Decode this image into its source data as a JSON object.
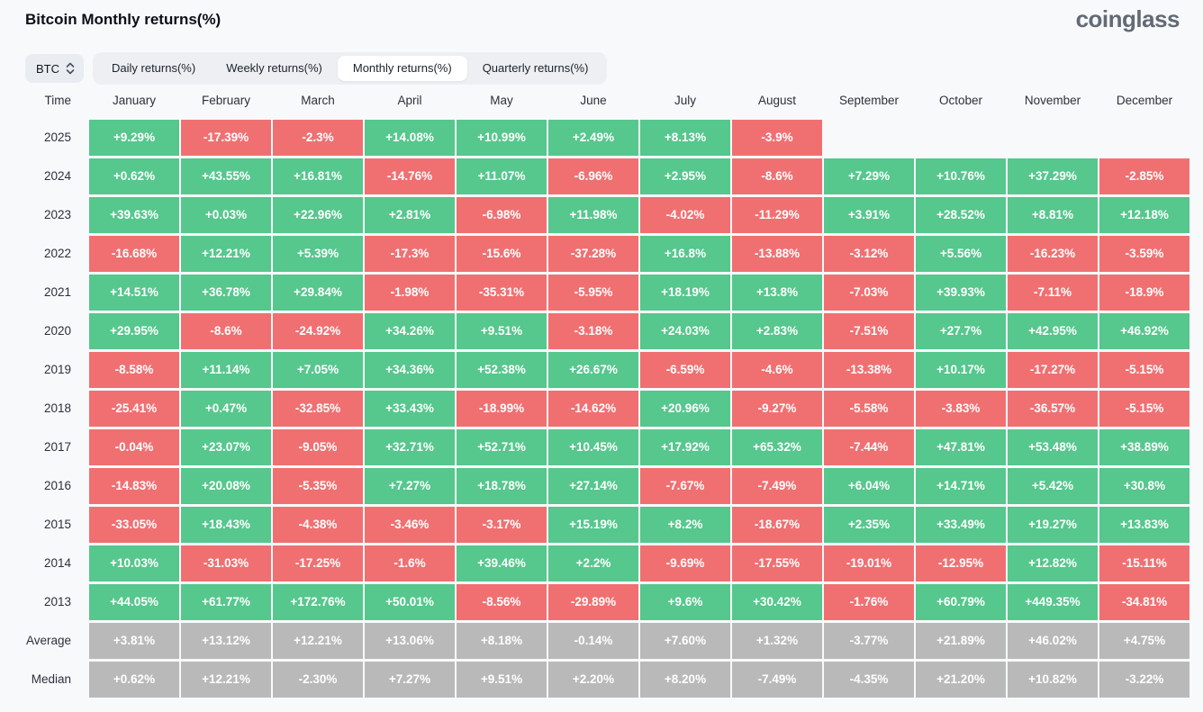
{
  "header": {
    "title": "Bitcoin Monthly returns(%)",
    "logo": "coinglass"
  },
  "controls": {
    "coin_selector": {
      "value": "BTC",
      "icon": "up-down-chevrons"
    },
    "tabs": [
      {
        "label": "Daily returns(%)",
        "active": false
      },
      {
        "label": "Weekly returns(%)",
        "active": false
      },
      {
        "label": "Monthly returns(%)",
        "active": true
      },
      {
        "label": "Quarterly returns(%)",
        "active": false
      }
    ]
  },
  "chart_data": {
    "type": "heatmap",
    "title": "Bitcoin Monthly returns(%)",
    "columns": [
      "Time",
      "January",
      "February",
      "March",
      "April",
      "May",
      "June",
      "July",
      "August",
      "September",
      "October",
      "November",
      "December"
    ],
    "colors": {
      "positive": "#56C78D",
      "negative": "#F07072",
      "neutral": "#B9B9B9"
    },
    "summary_rows": [
      "Average",
      "Median"
    ],
    "rows": [
      {
        "label": "2025",
        "values": [
          "+9.29%",
          "-17.39%",
          "-2.3%",
          "+14.08%",
          "+10.99%",
          "+2.49%",
          "+8.13%",
          "-3.9%",
          null,
          null,
          null,
          null
        ]
      },
      {
        "label": "2024",
        "values": [
          "+0.62%",
          "+43.55%",
          "+16.81%",
          "-14.76%",
          "+11.07%",
          "-6.96%",
          "+2.95%",
          "-8.6%",
          "+7.29%",
          "+10.76%",
          "+37.29%",
          "-2.85%"
        ]
      },
      {
        "label": "2023",
        "values": [
          "+39.63%",
          "+0.03%",
          "+22.96%",
          "+2.81%",
          "-6.98%",
          "+11.98%",
          "-4.02%",
          "-11.29%",
          "+3.91%",
          "+28.52%",
          "+8.81%",
          "+12.18%"
        ]
      },
      {
        "label": "2022",
        "values": [
          "-16.68%",
          "+12.21%",
          "+5.39%",
          "-17.3%",
          "-15.6%",
          "-37.28%",
          "+16.8%",
          "-13.88%",
          "-3.12%",
          "+5.56%",
          "-16.23%",
          "-3.59%"
        ]
      },
      {
        "label": "2021",
        "values": [
          "+14.51%",
          "+36.78%",
          "+29.84%",
          "-1.98%",
          "-35.31%",
          "-5.95%",
          "+18.19%",
          "+13.8%",
          "-7.03%",
          "+39.93%",
          "-7.11%",
          "-18.9%"
        ]
      },
      {
        "label": "2020",
        "values": [
          "+29.95%",
          "-8.6%",
          "-24.92%",
          "+34.26%",
          "+9.51%",
          "-3.18%",
          "+24.03%",
          "+2.83%",
          "-7.51%",
          "+27.7%",
          "+42.95%",
          "+46.92%"
        ]
      },
      {
        "label": "2019",
        "values": [
          "-8.58%",
          "+11.14%",
          "+7.05%",
          "+34.36%",
          "+52.38%",
          "+26.67%",
          "-6.59%",
          "-4.6%",
          "-13.38%",
          "+10.17%",
          "-17.27%",
          "-5.15%"
        ]
      },
      {
        "label": "2018",
        "values": [
          "-25.41%",
          "+0.47%",
          "-32.85%",
          "+33.43%",
          "-18.99%",
          "-14.62%",
          "+20.96%",
          "-9.27%",
          "-5.58%",
          "-3.83%",
          "-36.57%",
          "-5.15%"
        ]
      },
      {
        "label": "2017",
        "values": [
          "-0.04%",
          "+23.07%",
          "-9.05%",
          "+32.71%",
          "+52.71%",
          "+10.45%",
          "+17.92%",
          "+65.32%",
          "-7.44%",
          "+47.81%",
          "+53.48%",
          "+38.89%"
        ]
      },
      {
        "label": "2016",
        "values": [
          "-14.83%",
          "+20.08%",
          "-5.35%",
          "+7.27%",
          "+18.78%",
          "+27.14%",
          "-7.67%",
          "-7.49%",
          "+6.04%",
          "+14.71%",
          "+5.42%",
          "+30.8%"
        ]
      },
      {
        "label": "2015",
        "values": [
          "-33.05%",
          "+18.43%",
          "-4.38%",
          "-3.46%",
          "-3.17%",
          "+15.19%",
          "+8.2%",
          "-18.67%",
          "+2.35%",
          "+33.49%",
          "+19.27%",
          "+13.83%"
        ]
      },
      {
        "label": "2014",
        "values": [
          "+10.03%",
          "-31.03%",
          "-17.25%",
          "-1.6%",
          "+39.46%",
          "+2.2%",
          "-9.69%",
          "-17.55%",
          "-19.01%",
          "-12.95%",
          "+12.82%",
          "-15.11%"
        ]
      },
      {
        "label": "2013",
        "values": [
          "+44.05%",
          "+61.77%",
          "+172.76%",
          "+50.01%",
          "-8.56%",
          "-29.89%",
          "+9.6%",
          "+30.42%",
          "-1.76%",
          "+60.79%",
          "+449.35%",
          "-34.81%"
        ]
      },
      {
        "label": "Average",
        "values": [
          "+3.81%",
          "+13.12%",
          "+12.21%",
          "+13.06%",
          "+8.18%",
          "-0.14%",
          "+7.60%",
          "+1.32%",
          "-3.77%",
          "+21.89%",
          "+46.02%",
          "+4.75%"
        ]
      },
      {
        "label": "Median",
        "values": [
          "+0.62%",
          "+12.21%",
          "-2.30%",
          "+7.27%",
          "+9.51%",
          "+2.20%",
          "+8.20%",
          "-7.49%",
          "-4.35%",
          "+21.20%",
          "+10.82%",
          "-3.22%"
        ]
      }
    ]
  }
}
